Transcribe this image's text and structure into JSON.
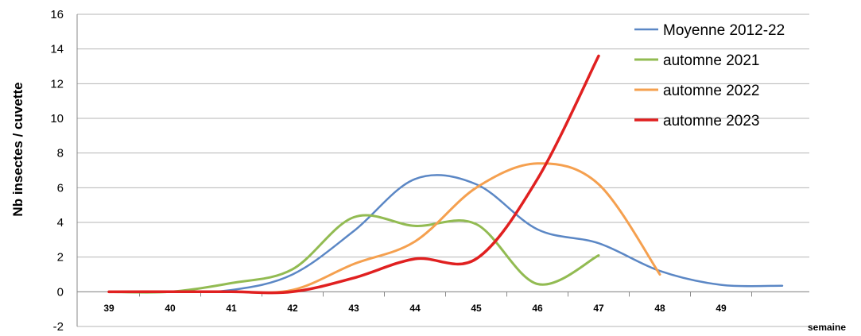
{
  "chart_data": {
    "type": "line",
    "title": "",
    "xlabel": "semaine",
    "ylabel": "Nb insectes / cuvette",
    "ylim": [
      -2,
      16
    ],
    "y_ticks": [
      "16",
      "14",
      "12",
      "10",
      "8",
      "6",
      "4",
      "2",
      "0",
      "-2"
    ],
    "x_ticks": [
      "39",
      "40",
      "41",
      "42",
      "43",
      "44",
      "45",
      "46",
      "47",
      "48",
      "49"
    ],
    "xlim": [
      39,
      50
    ],
    "grid": "horizontal",
    "legend_position": "top-right",
    "series": [
      {
        "name": "Moyenne 2012-22",
        "color": "#5b87c5",
        "x": [
          39,
          40,
          41,
          42,
          43,
          44,
          45,
          46,
          47,
          48,
          49,
          50
        ],
        "y": [
          0,
          0,
          0.1,
          1.0,
          3.5,
          6.5,
          6.2,
          3.6,
          2.8,
          1.2,
          0.4,
          0.35
        ]
      },
      {
        "name": "automne 2021",
        "color": "#92bb52",
        "x": [
          39,
          40,
          41,
          42,
          43,
          44,
          45,
          46,
          47
        ],
        "y": [
          0,
          0,
          0.5,
          1.3,
          4.3,
          3.8,
          3.9,
          0.45,
          2.1
        ]
      },
      {
        "name": "automne 2022",
        "color": "#f5a04f",
        "x": [
          39,
          40,
          41,
          42,
          43,
          44,
          45,
          46,
          47,
          48
        ],
        "y": [
          0,
          0,
          0,
          0.1,
          1.6,
          2.9,
          6.0,
          7.4,
          6.2,
          1.0
        ]
      },
      {
        "name": "automne 2023",
        "color": "#e02020",
        "x": [
          39,
          40,
          41,
          42,
          43,
          44,
          45,
          46,
          47
        ],
        "y": [
          0,
          0,
          0,
          0,
          0.8,
          1.9,
          1.9,
          6.5,
          13.6
        ]
      }
    ]
  }
}
